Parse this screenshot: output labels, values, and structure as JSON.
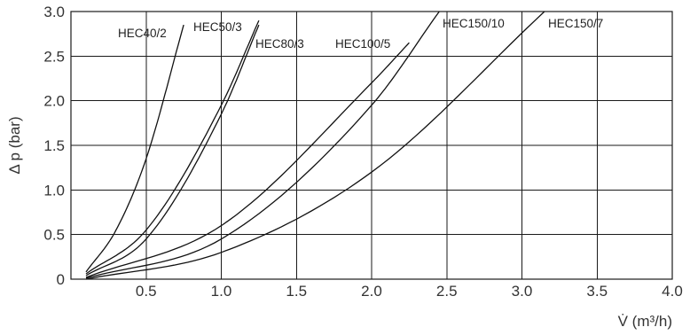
{
  "chart_data": {
    "type": "line",
    "xlabel": "V̇ (m³/h)",
    "ylabel": "Δ p (bar)",
    "xlim": [
      0,
      4.0
    ],
    "ylim": [
      0,
      3.0
    ],
    "grid": true,
    "x_ticks": [
      "0.5",
      "1.0",
      "1.5",
      "2.0",
      "2.5",
      "3.0",
      "3.5",
      "4.0"
    ],
    "y_ticks": [
      "0",
      "0.5",
      "1.0",
      "1.5",
      "2.0",
      "2.5",
      "3.0"
    ],
    "series": [
      {
        "name": "HEC40/2",
        "x": [
          0.1,
          0.3,
          0.5,
          0.75
        ],
        "y": [
          0.08,
          0.55,
          1.35,
          2.85
        ]
      },
      {
        "name": "HEC50/3",
        "x": [
          0.1,
          0.5,
          1.0,
          1.25
        ],
        "y": [
          0.06,
          0.55,
          1.95,
          2.9
        ]
      },
      {
        "name": "HEC80/3",
        "x": [
          0.1,
          0.5,
          1.0,
          1.25
        ],
        "y": [
          0.04,
          0.45,
          1.85,
          2.85
        ]
      },
      {
        "name": "HEC100/5",
        "x": [
          0.1,
          1.0,
          2.0,
          2.25
        ],
        "y": [
          0.02,
          0.6,
          2.2,
          2.65
        ]
      },
      {
        "name": "HEC150/10",
        "x": [
          0.1,
          1.0,
          2.0,
          2.45
        ],
        "y": [
          0.01,
          0.45,
          1.95,
          3.0
        ]
      },
      {
        "name": "HEC150/7",
        "x": [
          0.1,
          1.0,
          2.0,
          3.15
        ],
        "y": [
          0.0,
          0.3,
          1.2,
          3.0
        ]
      }
    ]
  }
}
